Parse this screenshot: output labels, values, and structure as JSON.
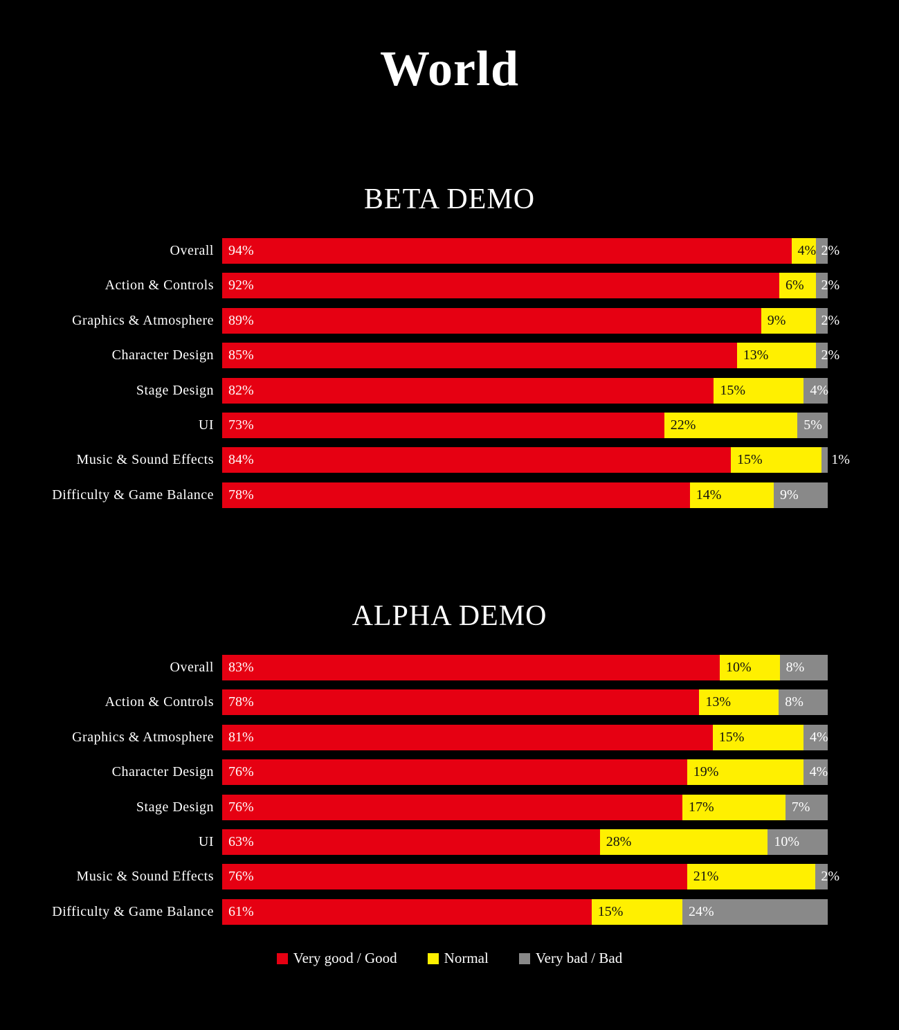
{
  "page": {
    "title": "World"
  },
  "colors": {
    "good": "#e60012",
    "normal": "#fff000",
    "bad": "#898989",
    "background": "#000000"
  },
  "legend": [
    {
      "label": "Very good / Good",
      "color": "#e60012"
    },
    {
      "label": "Normal",
      "color": "#fff000"
    },
    {
      "label": "Very bad / Bad",
      "color": "#898989"
    }
  ],
  "sections": [
    {
      "title": "BETA DEMO",
      "rows": [
        {
          "label": "Overall",
          "good": "94%",
          "normal": "4%",
          "bad": "2%"
        },
        {
          "label": "Action & Controls",
          "good": "92%",
          "normal": "6%",
          "bad": "2%"
        },
        {
          "label": "Graphics & Atmosphere",
          "good": "89%",
          "normal": "9%",
          "bad": "2%"
        },
        {
          "label": "Character Design",
          "good": "85%",
          "normal": "13%",
          "bad": "2%"
        },
        {
          "label": "Stage Design",
          "good": "82%",
          "normal": "15%",
          "bad": "4%"
        },
        {
          "label": "UI",
          "good": "73%",
          "normal": "22%",
          "bad": "5%"
        },
        {
          "label": "Music & Sound Effects",
          "good": "84%",
          "normal": "15%",
          "bad": "1%"
        },
        {
          "label": "Difficulty & Game Balance",
          "good": "78%",
          "normal": "14%",
          "bad": "9%"
        }
      ]
    },
    {
      "title": "ALPHA DEMO",
      "rows": [
        {
          "label": "Overall",
          "good": "83%",
          "normal": "10%",
          "bad": "8%"
        },
        {
          "label": "Action & Controls",
          "good": "78%",
          "normal": "13%",
          "bad": "8%"
        },
        {
          "label": "Graphics & Atmosphere",
          "good": "81%",
          "normal": "15%",
          "bad": "4%"
        },
        {
          "label": "Character Design",
          "good": "76%",
          "normal": "19%",
          "bad": "4%"
        },
        {
          "label": "Stage Design",
          "good": "76%",
          "normal": "17%",
          "bad": "7%"
        },
        {
          "label": "UI",
          "good": "63%",
          "normal": "28%",
          "bad": "10%"
        },
        {
          "label": "Music & Sound Effects",
          "good": "76%",
          "normal": "21%",
          "bad": "2%"
        },
        {
          "label": "Difficulty & Game Balance",
          "good": "61%",
          "normal": "15%",
          "bad": "24%"
        }
      ]
    }
  ],
  "chart_data": [
    {
      "type": "bar",
      "orientation": "horizontal",
      "stacked": true,
      "title": "BETA DEMO",
      "supertitle": "World",
      "categories": [
        "Overall",
        "Action & Controls",
        "Graphics & Atmosphere",
        "Character Design",
        "Stage Design",
        "UI",
        "Music & Sound Effects",
        "Difficulty & Game Balance"
      ],
      "series": [
        {
          "name": "Very good / Good",
          "color": "#e60012",
          "values": [
            94,
            92,
            89,
            85,
            82,
            73,
            84,
            78
          ]
        },
        {
          "name": "Normal",
          "color": "#fff000",
          "values": [
            4,
            6,
            9,
            13,
            15,
            22,
            15,
            14
          ]
        },
        {
          "name": "Very bad / Bad",
          "color": "#898989",
          "values": [
            2,
            2,
            2,
            2,
            4,
            5,
            1,
            9
          ]
        }
      ],
      "xlabel": "",
      "ylabel": "",
      "xlim": [
        0,
        100
      ],
      "grid": false,
      "legend_position": "bottom",
      "value_format": "percent"
    },
    {
      "type": "bar",
      "orientation": "horizontal",
      "stacked": true,
      "title": "ALPHA DEMO",
      "supertitle": "World",
      "categories": [
        "Overall",
        "Action & Controls",
        "Graphics & Atmosphere",
        "Character Design",
        "Stage Design",
        "UI",
        "Music & Sound Effects",
        "Difficulty & Game Balance"
      ],
      "series": [
        {
          "name": "Very good / Good",
          "color": "#e60012",
          "values": [
            83,
            78,
            81,
            76,
            76,
            63,
            76,
            61
          ]
        },
        {
          "name": "Normal",
          "color": "#fff000",
          "values": [
            10,
            13,
            15,
            19,
            17,
            28,
            21,
            15
          ]
        },
        {
          "name": "Very bad / Bad",
          "color": "#898989",
          "values": [
            8,
            8,
            4,
            4,
            7,
            10,
            2,
            24
          ]
        }
      ],
      "xlabel": "",
      "ylabel": "",
      "xlim": [
        0,
        100
      ],
      "grid": false,
      "legend_position": "bottom",
      "value_format": "percent"
    }
  ]
}
